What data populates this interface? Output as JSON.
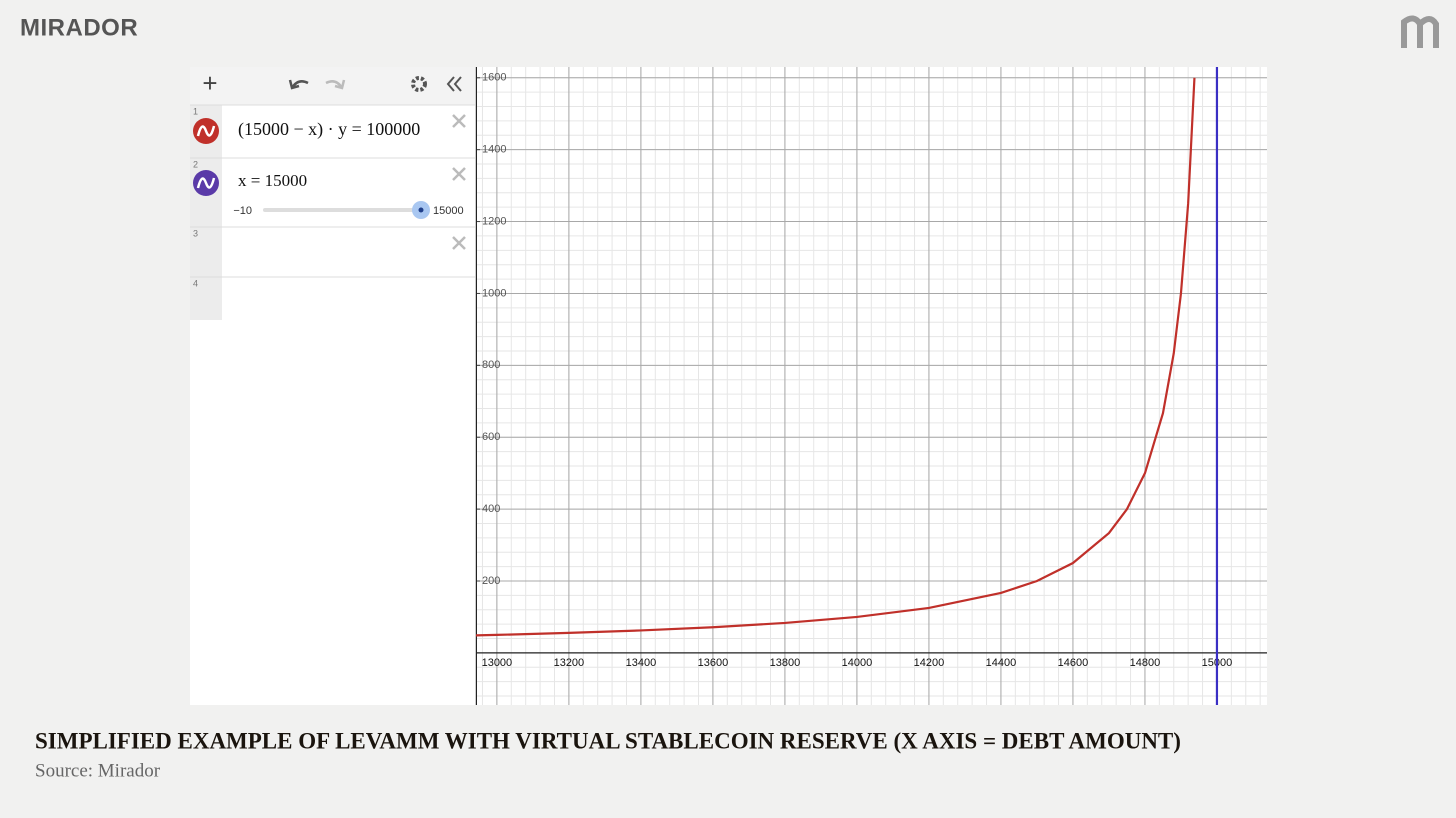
{
  "brand": "MIRADOR",
  "toolbar": {
    "row_numbers": [
      "1",
      "2",
      "3",
      "4"
    ]
  },
  "expressions": [
    {
      "text": "(15000 − x) · y = 100000"
    },
    {
      "text": "x = 15000",
      "slider_min": "−10",
      "slider_max": "15000"
    }
  ],
  "caption": {
    "title": "SIMPLIFIED EXAMPLE OF LEVAMM WITH VIRTUAL STABLECOIN RESERVE (X AXIS = DEBT AMOUNT)",
    "source": "Source: Mirador"
  },
  "chart_data": {
    "type": "line",
    "xlim": [
      12942,
      15139
    ],
    "ylim": [
      -145,
      1630
    ],
    "xticks": [
      13000,
      13200,
      13400,
      13600,
      13800,
      14000,
      14200,
      14400,
      14600,
      14800,
      15000
    ],
    "yticks": [
      200,
      400,
      600,
      800,
      1000,
      1200,
      1400,
      1600
    ],
    "grid": true,
    "series": [
      {
        "color": "#c0302a",
        "x": [
          12942,
          13000,
          13200,
          13400,
          13600,
          13800,
          14000,
          14200,
          14400,
          14500,
          14600,
          14700,
          14750,
          14800,
          14850,
          14880,
          14900,
          14920,
          14937.5
        ],
        "values": [
          48.6,
          50,
          55.6,
          62.5,
          71.4,
          83.3,
          100,
          125,
          166.7,
          200,
          250,
          333.3,
          400,
          500,
          666.7,
          833.3,
          1000,
          1250,
          1600
        ]
      },
      {
        "color": "#3a2fc4",
        "x": [
          15000,
          15000
        ],
        "values": [
          -145,
          1630
        ]
      }
    ]
  }
}
